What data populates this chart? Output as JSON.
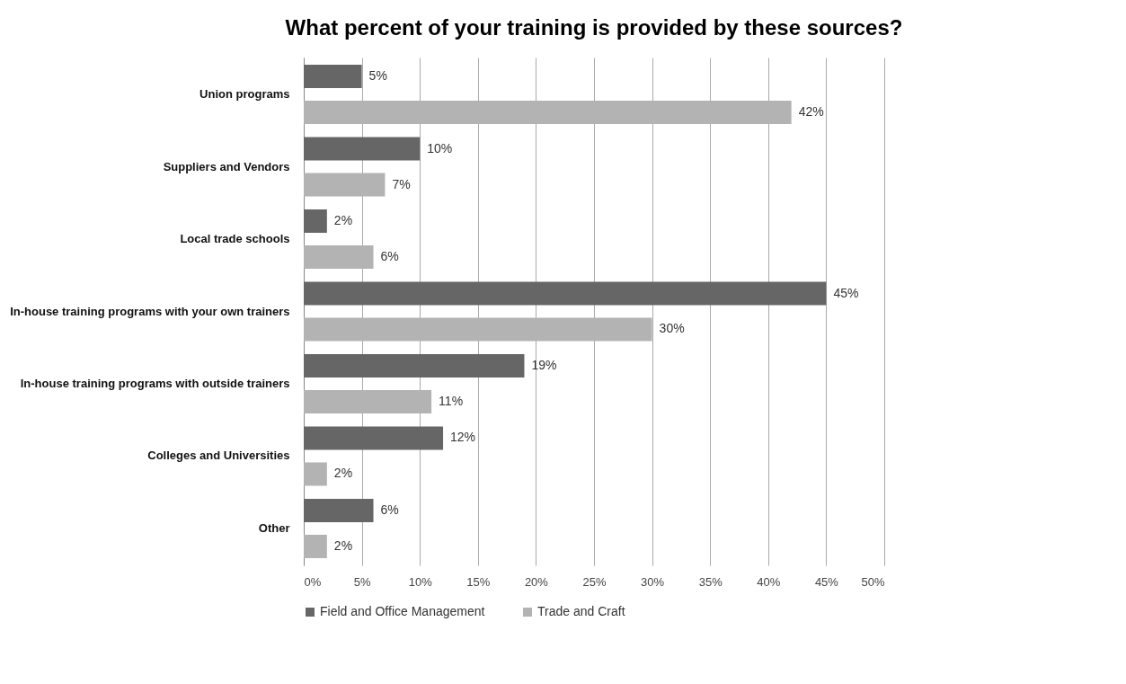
{
  "chart_data": {
    "type": "bar",
    "orientation": "horizontal",
    "title": "What percent of your training is provided by these sources?",
    "categories": [
      "Union programs",
      "Suppliers and Vendors",
      "Local trade schools",
      "In-house training programs with your own trainers",
      "In-house training programs with outside trainers",
      "Colleges and Universities",
      "Other"
    ],
    "series": [
      {
        "name": "Field and Office Management",
        "color": "#666666",
        "values": [
          5,
          10,
          2,
          45,
          19,
          12,
          6
        ],
        "value_labels": [
          "5%",
          "10%",
          "2%",
          "45%",
          "19%",
          "12%",
          "6%"
        ]
      },
      {
        "name": "Trade and Craft",
        "color": "#b3b3b3",
        "values": [
          42,
          7,
          6,
          30,
          11,
          2,
          2
        ],
        "value_labels": [
          "42%",
          "7%",
          "6%",
          "30%",
          "11%",
          "2%",
          "2%"
        ]
      }
    ],
    "xlim": [
      0,
      50
    ],
    "xticks": [
      {
        "value": 0,
        "label": "0%"
      },
      {
        "value": 5,
        "label": "5%"
      },
      {
        "value": 10,
        "label": "10%"
      },
      {
        "value": 15,
        "label": "15%"
      },
      {
        "value": 20,
        "label": "20%"
      },
      {
        "value": 25,
        "label": "25%"
      },
      {
        "value": 30,
        "label": "30%"
      },
      {
        "value": 35,
        "label": "35%"
      },
      {
        "value": 40,
        "label": "40%"
      },
      {
        "value": 45,
        "label": "45%"
      },
      {
        "value": 50,
        "label": "50%"
      }
    ],
    "grid": "x",
    "legend": "bottom"
  }
}
